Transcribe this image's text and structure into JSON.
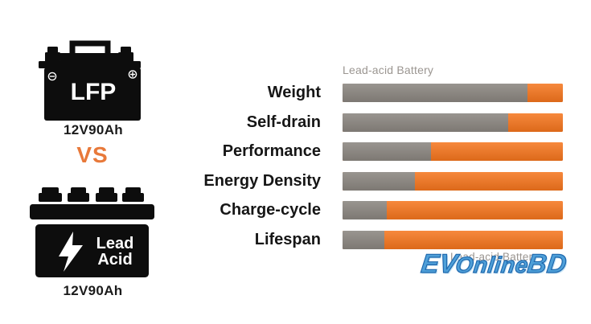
{
  "left_panel": {
    "lfp": {
      "label": "LFP",
      "capacity": "12V90Ah"
    },
    "vs": "VS",
    "lead_acid": {
      "line1": "Lead",
      "line2": "Acid",
      "capacity": "12V90Ah"
    }
  },
  "chart_data": {
    "type": "bar",
    "orientation": "horizontal",
    "categories": [
      "Weight",
      "Self-drain",
      "Performance",
      "Energy Density",
      "Charge-cycle",
      "Lifespan"
    ],
    "series": [
      {
        "name": "Lead-acid Battery",
        "color": "#8B8680",
        "values_pct": [
          84,
          75,
          40,
          33,
          20,
          19
        ]
      },
      {
        "name": "",
        "color": "#F5751D",
        "values_pct": [
          16,
          25,
          60,
          67,
          80,
          81
        ]
      }
    ],
    "legend_top": "Lead-acid Battery",
    "legend_bottom": "Lead-acid Battery",
    "xlim_pct": [
      0,
      100
    ],
    "grid": false,
    "legend_position": "top-left-of-bars"
  },
  "watermark": {
    "part1": "EV",
    "part2": "Online",
    "part3": "BD"
  },
  "colors": {
    "bar_gray": "#8B8680",
    "bar_orange": "#F5751D",
    "vs_orange": "#E8793A",
    "legend_gray": "#9B9691",
    "label_black": "#161616",
    "watermark_blue": "#4E9FD8"
  }
}
